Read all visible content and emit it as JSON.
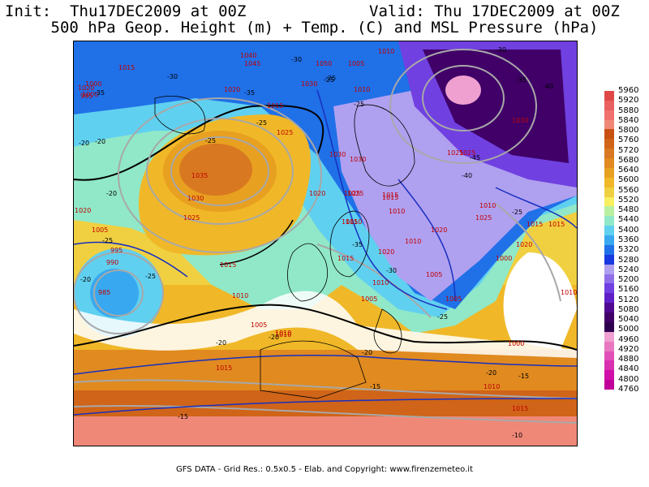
{
  "header": {
    "init": "Init:  Thu17DEC2009 at 00Z",
    "valid": "Valid: Thu 17DEC2009 at 00Z",
    "subtitle": "500 hPa Geop. Height (m) + Temp. (C) and MSL Pressure (hPa)"
  },
  "colorbar": {
    "ticks": [
      "5960",
      "5920",
      "5880",
      "5840",
      "5800",
      "5760",
      "5720",
      "5680",
      "5640",
      "5600",
      "5560",
      "5520",
      "5480",
      "5440",
      "5400",
      "5360",
      "5320",
      "5280",
      "5240",
      "5200",
      "5160",
      "5120",
      "5080",
      "5040",
      "5000",
      "4960",
      "4920",
      "4880",
      "4840",
      "4800",
      "4760"
    ],
    "colors": [
      "#e04848",
      "#e86060",
      "#f07070",
      "#f08878",
      "#c85010",
      "#d06418",
      "#d87820",
      "#e08a20",
      "#e8a020",
      "#f0b828",
      "#f0d040",
      "#f8f060",
      "#b8f0a0",
      "#90e8c8",
      "#60d0f0",
      "#38a8f0",
      "#2070e8",
      "#1838e0",
      "#b0a0f0",
      "#9070e8",
      "#7040e0",
      "#6020c8",
      "#500890",
      "#400068",
      "#300050",
      "#f0a0d0",
      "#e878c0",
      "#e050b8",
      "#d830b0",
      "#d010a8",
      "#c00098"
    ]
  },
  "map_labels": {
    "pressure": [
      "1015",
      "1040",
      "1045",
      "1050",
      "1005",
      "1010",
      "1020",
      "1015",
      "1010",
      "1025",
      "1035",
      "1030",
      "1025",
      "1030",
      "1020",
      "1025",
      "1015",
      "1010",
      "1015",
      "1020",
      "1025",
      "1030",
      "1025",
      "1010",
      "1005",
      "995",
      "990",
      "985",
      "1015",
      "1010",
      "1005",
      "1010",
      "1020",
      "1005",
      "1010",
      "1005",
      "1000",
      "1020",
      "1015",
      "1010",
      "1005",
      "1000",
      "1000",
      "1015",
      "1015",
      "1010",
      "1015",
      "1030",
      "1010",
      "1000",
      "995",
      "1020",
      "1025",
      "1030",
      "1025",
      "1015",
      "1010",
      "1020",
      "1015",
      "1010"
    ],
    "temperature": [
      "-30",
      "-35",
      "-30",
      "-25",
      "-35",
      "-25",
      "-20",
      "-20",
      "-25",
      "-20",
      "-25",
      "-25",
      "-35",
      "-30",
      "-25",
      "-35",
      "-40",
      "-45",
      "-40",
      "-30",
      "-25",
      "-20",
      "-20",
      "-20",
      "-15",
      "-20",
      "-15",
      "-15",
      "-10",
      "-25",
      "-25",
      "-20"
    ]
  },
  "footer": "GFS DATA - Grid Res.: 0.5x0.5 - Elab. and Copyright: www.firenzemeteo.it"
}
